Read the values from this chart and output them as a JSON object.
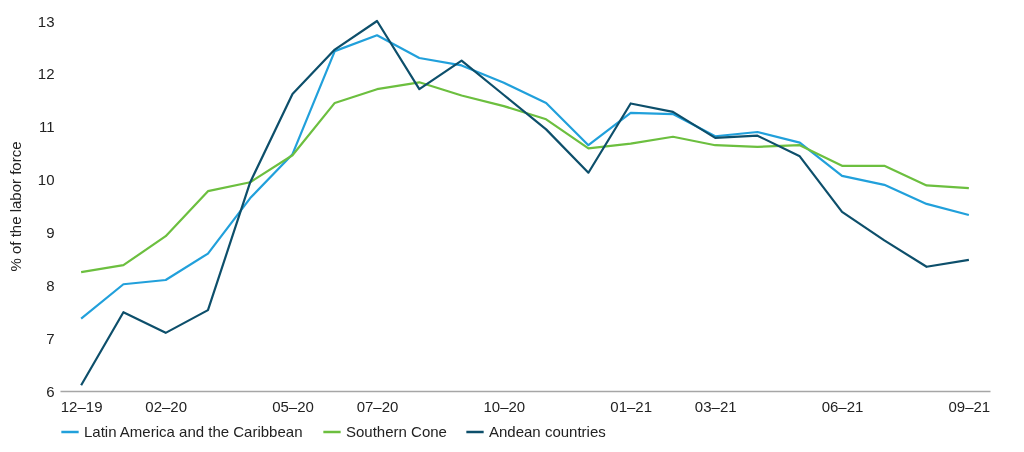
{
  "chart_data": {
    "type": "line",
    "ylabel": "% of the labor force",
    "categories": [
      "12–19",
      null,
      "02–20",
      null,
      null,
      "05–20",
      null,
      "07–20",
      null,
      null,
      "10–20",
      null,
      null,
      "01–21",
      null,
      "03–21",
      null,
      null,
      "06–21",
      null,
      null,
      "09–21"
    ],
    "series": [
      {
        "name": "Latin America and the Caribbean",
        "color": "#21a0db",
        "values": [
          7.37,
          8.02,
          8.1,
          8.6,
          9.65,
          10.48,
          12.43,
          12.73,
          12.3,
          12.16,
          11.83,
          11.45,
          10.65,
          11.26,
          11.24,
          10.82,
          10.9,
          10.7,
          10.07,
          9.9,
          9.54,
          9.33
        ]
      },
      {
        "name": "Southern Cone",
        "color": "#6cbf3f",
        "values": [
          8.25,
          8.38,
          8.93,
          9.78,
          9.95,
          10.46,
          11.45,
          11.71,
          11.84,
          11.59,
          11.39,
          11.14,
          10.59,
          10.68,
          10.81,
          10.65,
          10.62,
          10.65,
          10.26,
          10.26,
          9.89,
          9.84
        ]
      },
      {
        "name": "Andean countries",
        "color": "#0d4f6b",
        "values": [
          6.11,
          7.49,
          7.1,
          7.53,
          9.95,
          11.62,
          12.46,
          13.0,
          11.71,
          12.25,
          11.6,
          10.95,
          10.13,
          11.44,
          11.28,
          10.79,
          10.83,
          10.44,
          9.39,
          8.85,
          8.35,
          8.48
        ]
      }
    ],
    "ylim": [
      6,
      13
    ],
    "yticks": [
      6,
      7,
      8,
      9,
      10,
      11,
      12,
      13
    ],
    "grid": false,
    "legend": "bottom",
    "marker": "none",
    "line_style": "solid"
  }
}
